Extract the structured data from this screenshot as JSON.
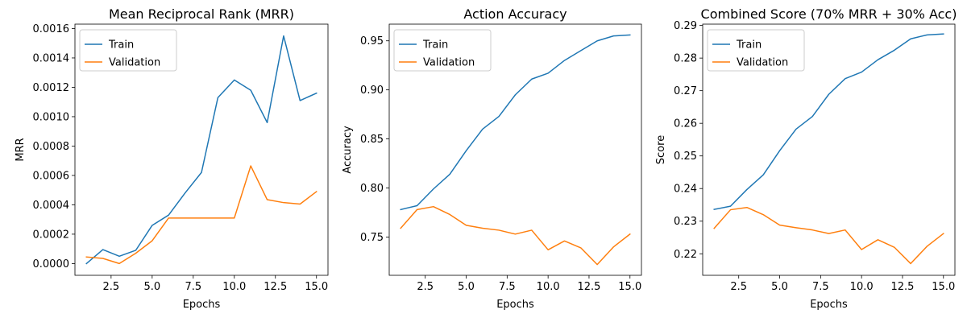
{
  "chart_data": [
    {
      "type": "line",
      "title": "Mean Reciprocal Rank (MRR)",
      "xlabel": "Epochs",
      "ylabel": "MRR",
      "xlim": [
        0.3,
        15.7
      ],
      "ylim": [
        -8e-05,
        0.00163
      ],
      "xticks": [
        2.5,
        5.0,
        7.5,
        10.0,
        12.5,
        15.0
      ],
      "xtick_labels": [
        "2.5",
        "5.0",
        "7.5",
        "10.0",
        "12.5",
        "15.0"
      ],
      "yticks": [
        0,
        0.0002,
        0.0004,
        0.0006,
        0.0008,
        0.001,
        0.0012,
        0.0014,
        0.0016
      ],
      "ytick_labels": [
        "0.0000",
        "0.0002",
        "0.0004",
        "0.0006",
        "0.0008",
        "0.0010",
        "0.0012",
        "0.0014",
        "0.0016"
      ],
      "legend_position": "top-left",
      "x": [
        1,
        2,
        3,
        4,
        5,
        6,
        7,
        8,
        9,
        10,
        11,
        12,
        13,
        14,
        15
      ],
      "series": [
        {
          "name": "Train",
          "color": "#1f77b4",
          "values": [
            0.0,
            9.5e-05,
            5e-05,
            9e-05,
            0.00026,
            0.00033,
            0.00048,
            0.00062,
            0.00113,
            0.00125,
            0.00118,
            0.00096,
            0.00155,
            0.00111,
            0.00116
          ]
        },
        {
          "name": "Validation",
          "color": "#ff7f0e",
          "values": [
            4.5e-05,
            3.5e-05,
            0.0,
            7e-05,
            0.000155,
            0.00031,
            0.00031,
            0.00031,
            0.00031,
            0.00031,
            0.000665,
            0.000435,
            0.000415,
            0.000405,
            0.00049
          ]
        }
      ]
    },
    {
      "type": "line",
      "title": "Action Accuracy",
      "xlabel": "Epochs",
      "ylabel": "Accuracy",
      "xlim": [
        0.3,
        15.7
      ],
      "ylim": [
        0.711,
        0.967
      ],
      "xticks": [
        2.5,
        5.0,
        7.5,
        10.0,
        12.5,
        15.0
      ],
      "xtick_labels": [
        "2.5",
        "5.0",
        "7.5",
        "10.0",
        "12.5",
        "15.0"
      ],
      "yticks": [
        0.75,
        0.8,
        0.85,
        0.9,
        0.95
      ],
      "ytick_labels": [
        "0.75",
        "0.80",
        "0.85",
        "0.90",
        "0.95"
      ],
      "legend_position": "top-left",
      "x": [
        1,
        2,
        3,
        4,
        5,
        6,
        7,
        8,
        9,
        10,
        11,
        12,
        13,
        14,
        15
      ],
      "series": [
        {
          "name": "Train",
          "color": "#1f77b4",
          "values": [
            0.778,
            0.782,
            0.799,
            0.814,
            0.838,
            0.86,
            0.873,
            0.895,
            0.911,
            0.917,
            0.93,
            0.94,
            0.95,
            0.955,
            0.956
          ]
        },
        {
          "name": "Validation",
          "color": "#ff7f0e",
          "values": [
            0.759,
            0.778,
            0.781,
            0.773,
            0.762,
            0.759,
            0.757,
            0.753,
            0.757,
            0.737,
            0.746,
            0.739,
            0.722,
            0.74,
            0.753
          ]
        }
      ]
    },
    {
      "type": "line",
      "title": "Combined Score (70% MRR + 30% Acc)",
      "xlabel": "Epochs",
      "ylabel": "Score",
      "xlim": [
        0.3,
        15.7
      ],
      "ylim": [
        0.2134,
        0.2904
      ],
      "xticks": [
        2.5,
        5.0,
        7.5,
        10.0,
        12.5,
        15.0
      ],
      "xtick_labels": [
        "2.5",
        "5.0",
        "7.5",
        "10.0",
        "12.5",
        "15.0"
      ],
      "yticks": [
        0.22,
        0.23,
        0.24,
        0.25,
        0.26,
        0.27,
        0.28,
        0.29
      ],
      "ytick_labels": [
        "0.22",
        "0.23",
        "0.24",
        "0.25",
        "0.26",
        "0.27",
        "0.28",
        "0.29"
      ],
      "legend_position": "top-left",
      "x": [
        1,
        2,
        3,
        4,
        5,
        6,
        7,
        8,
        9,
        10,
        11,
        12,
        13,
        14,
        15
      ],
      "series": [
        {
          "name": "Train",
          "color": "#1f77b4",
          "values": [
            0.2336,
            0.2346,
            0.2397,
            0.2442,
            0.2516,
            0.2582,
            0.2621,
            0.2689,
            0.2737,
            0.2757,
            0.2795,
            0.2824,
            0.2859,
            0.2871,
            0.2874
          ]
        },
        {
          "name": "Validation",
          "color": "#ff7f0e",
          "values": [
            0.2278,
            0.2335,
            0.2342,
            0.232,
            0.2288,
            0.228,
            0.2273,
            0.2262,
            0.2273,
            0.2213,
            0.2243,
            0.222,
            0.217,
            0.2223,
            0.2262
          ]
        }
      ]
    }
  ]
}
